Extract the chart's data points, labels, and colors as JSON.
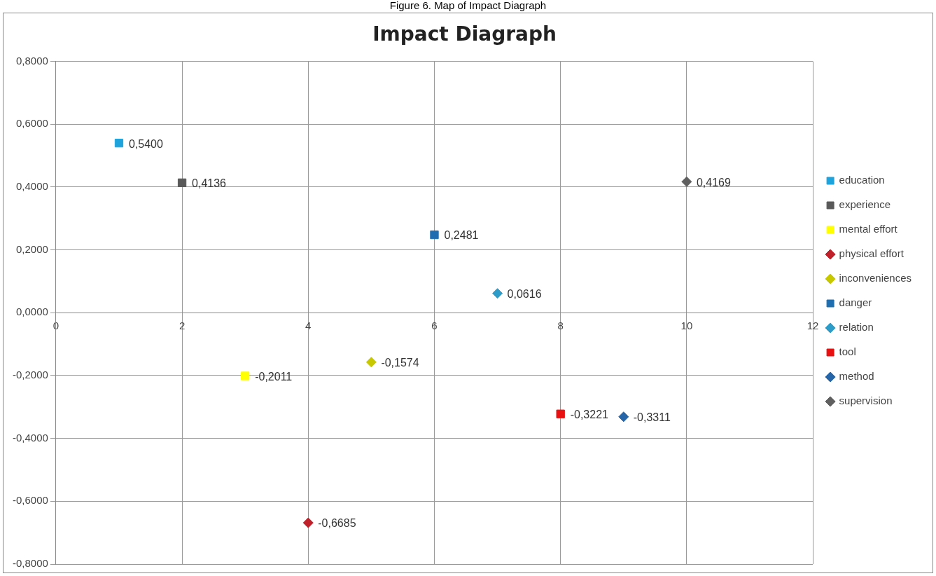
{
  "chart_data": {
    "type": "scatter",
    "title": "Impact Diagraph",
    "annotations": [
      "Figure 6. Map of Impact Diagraph"
    ],
    "xlim": [
      0,
      12
    ],
    "xticks": [
      0,
      2,
      4,
      6,
      8,
      10,
      12
    ],
    "ylim": [
      -0.8,
      0.8
    ],
    "yticks": [
      {
        "value": -0.8,
        "label": "-0,8000"
      },
      {
        "value": -0.6,
        "label": "-0,6000"
      },
      {
        "value": -0.4,
        "label": "-0,4000"
      },
      {
        "value": -0.2,
        "label": "-0,2000"
      },
      {
        "value": 0,
        "label": "0,0000"
      },
      {
        "value": 0.2,
        "label": "0,2000"
      },
      {
        "value": 0.4,
        "label": "0,4000"
      },
      {
        "value": 0.6,
        "label": "0,6000"
      },
      {
        "value": 0.8,
        "label": "0,8000"
      }
    ],
    "grid": true,
    "legend": "right",
    "series": [
      {
        "name": "education",
        "color": "#1fa3dc",
        "marker": "square",
        "x": [
          1
        ],
        "values": [
          0.54
        ],
        "value_labels": [
          "0,5400"
        ]
      },
      {
        "name": "experience",
        "color": "#595959",
        "marker": "square",
        "x": [
          2
        ],
        "values": [
          0.4136
        ],
        "value_labels": [
          "0,4136"
        ]
      },
      {
        "name": "mental effort",
        "color": "#ffff00",
        "marker": "square",
        "x": [
          3
        ],
        "values": [
          -0.2011
        ],
        "value_labels": [
          "-0,2011"
        ]
      },
      {
        "name": "physical effort",
        "color": "#c0202a",
        "marker": "diamond",
        "x": [
          4
        ],
        "values": [
          -0.6685
        ],
        "value_labels": [
          "-0,6685"
        ]
      },
      {
        "name": "inconveniences",
        "color": "#c8c800",
        "marker": "diamond",
        "x": [
          5
        ],
        "values": [
          -0.1574
        ],
        "value_labels": [
          "-0,1574"
        ]
      },
      {
        "name": "danger",
        "color": "#1f6fb0",
        "marker": "square",
        "x": [
          6
        ],
        "values": [
          0.2481
        ],
        "value_labels": [
          "0,2481"
        ]
      },
      {
        "name": "relation",
        "color": "#2e9cc8",
        "marker": "diamond",
        "x": [
          7
        ],
        "values": [
          0.0616
        ],
        "value_labels": [
          "0,0616"
        ]
      },
      {
        "name": "tool",
        "color": "#e81010",
        "marker": "square",
        "x": [
          8
        ],
        "values": [
          -0.3221
        ],
        "value_labels": [
          "-0,3221"
        ]
      },
      {
        "name": "method",
        "color": "#2565a8",
        "marker": "diamond",
        "x": [
          9
        ],
        "values": [
          -0.3311
        ],
        "value_labels": [
          "-0,3311"
        ]
      },
      {
        "name": "supervision",
        "color": "#606060",
        "marker": "diamond",
        "x": [
          10
        ],
        "values": [
          0.4169
        ],
        "value_labels": [
          "0,4169"
        ]
      }
    ]
  }
}
